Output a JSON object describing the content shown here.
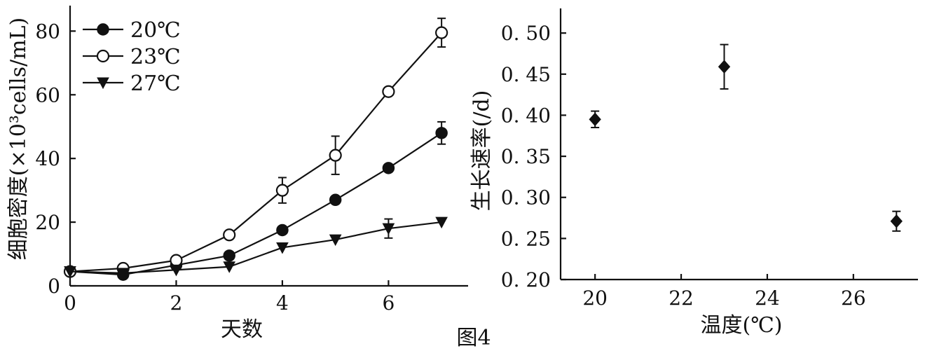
{
  "figure_label": "图4",
  "chart_data": [
    {
      "type": "line",
      "xlabel": "天数",
      "ylabel": "细胞密度(×10³cells/mL)",
      "xlim": [
        0,
        7.5
      ],
      "ylim": [
        0,
        88
      ],
      "xticks": [
        0,
        2,
        4,
        6
      ],
      "yticks": [
        0,
        20,
        40,
        60,
        80
      ],
      "legend_position": "top-left",
      "series": [
        {
          "name": "20℃",
          "marker": "filled-circle",
          "x": [
            0,
            1,
            2,
            3,
            4,
            5,
            6,
            7
          ],
          "y": [
            4.5,
            3.5,
            6.5,
            9.5,
            17.5,
            27,
            37,
            48
          ],
          "err": [
            0,
            0,
            0,
            0,
            0,
            0,
            0,
            3.5
          ]
        },
        {
          "name": "23℃",
          "marker": "open-circle",
          "x": [
            0,
            1,
            2,
            3,
            4,
            5,
            6,
            7
          ],
          "y": [
            4.5,
            5.5,
            8,
            16,
            30,
            41,
            61,
            79.5
          ],
          "err": [
            0,
            0,
            0,
            0,
            4,
            6,
            0,
            4.5
          ]
        },
        {
          "name": "27℃",
          "marker": "filled-triangle-down",
          "x": [
            0,
            1,
            2,
            3,
            4,
            5,
            6,
            7
          ],
          "y": [
            4.5,
            4,
            5,
            6,
            12,
            14.5,
            18,
            20
          ],
          "err": [
            0,
            0,
            0,
            0,
            0,
            0,
            3,
            0
          ]
        }
      ]
    },
    {
      "type": "scatter",
      "xlabel": "温度(℃)",
      "ylabel": "生长速率(/d)",
      "xlim": [
        19.2,
        27.5
      ],
      "ylim": [
        0.2,
        0.53
      ],
      "xticks": [
        20,
        22,
        24,
        26
      ],
      "yticks": [
        "0.20",
        "0.25",
        "0.30",
        "0.35",
        "0.40",
        "0.45",
        "0.50"
      ],
      "series": [
        {
          "marker": "filled-diamond",
          "x": [
            20,
            23,
            27
          ],
          "y": [
            0.395,
            0.459,
            0.271
          ],
          "err": [
            0.01,
            0.027,
            0.012
          ]
        }
      ]
    }
  ]
}
